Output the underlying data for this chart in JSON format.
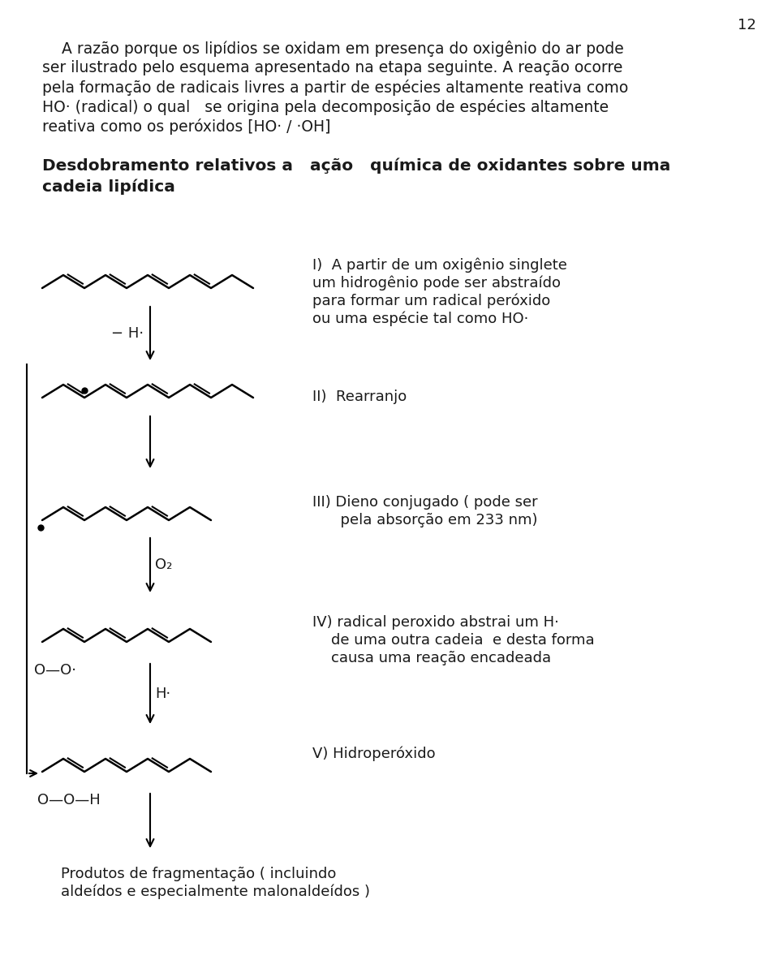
{
  "page_number": "12",
  "bg_color": "#ffffff",
  "text_color": "#1a1a1a",
  "intro_line1": "    A razão porque os lipídios se oxidam em presença do oxigênio do ar pode",
  "intro_line2": "ser ilustrado pelo esquema apresentado na etapa seguinte. A reação ocorre",
  "intro_line3": "pela formação de radicais livres a partir de espécies altamente reativa como",
  "intro_line4": "HO· (radical) o qual   se origina pela decomposição de espécies altamente",
  "intro_line5": "reativa como os peróxidos [HO· / ·OH]",
  "sub_line1": "Desdobramento relativos a   ação   química de oxidantes sobre uma",
  "sub_line2": "cadeia lipídica",
  "step1_l1": "I)  A partir de um oxigênio singlete",
  "step1_l2": "um hidrogênio pode ser abstraído",
  "step1_l3": "para formar um radical peróxido",
  "step1_l4": "ou uma espécie tal como HO·",
  "minus_H": "− H·",
  "step2": "II)  Rearranjo",
  "step3_l1": "III) Dieno conjugado ( pode ser",
  "step3_l2": "      pela absorção em 233 nm)",
  "O2": "O₂",
  "step4_l1": "IV) radical peroxido abstrai um H·",
  "step4_l2": "    de uma outra cadeia  e desta forma",
  "step4_l3": "    causa uma reação encadeada",
  "OO_dot": "O—O·",
  "H_dot": "H·",
  "step5": "V) Hidroperóxido",
  "OOH": "O—O—H",
  "final_l1": "Produtos de fragmentação ( incluindo",
  "final_l2": "aldeídos e especialmente malonaldeídos )",
  "fs_body": 13.5,
  "fs_sub": 14.5,
  "fs_chem": 13.0
}
